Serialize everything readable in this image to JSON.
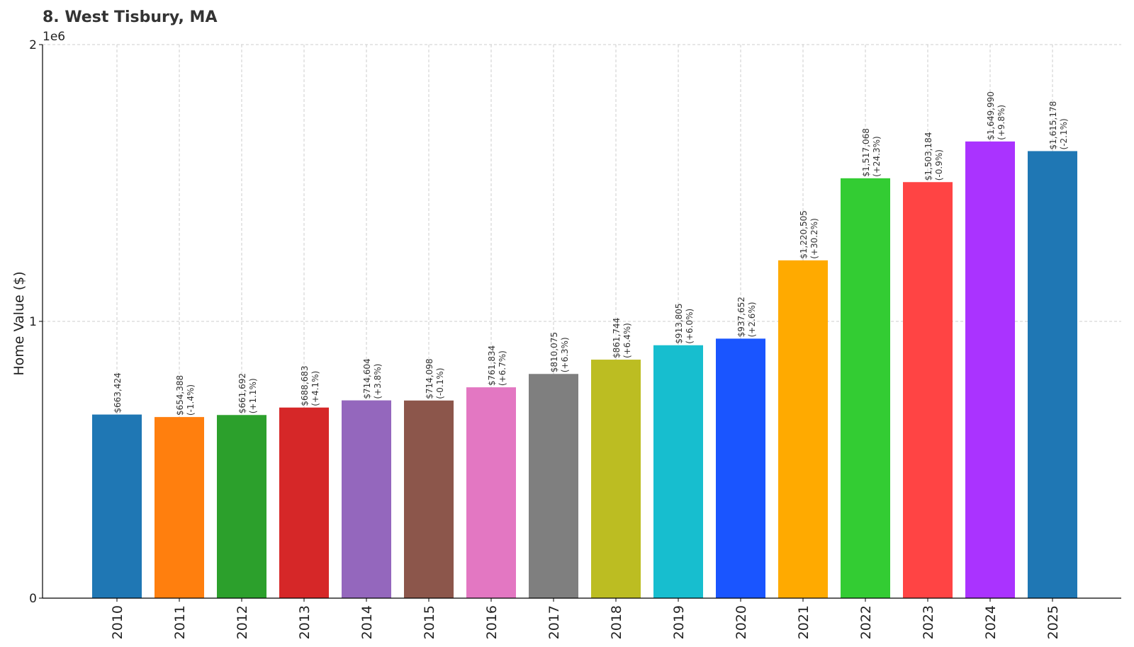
{
  "chart_data": {
    "type": "bar",
    "title": "8. West Tisbury, MA",
    "xlabel": "",
    "ylabel": "Home Value ($)",
    "y_offset_label": "1e6",
    "ylim": [
      0,
      2000000
    ],
    "y_ticks": [
      0,
      1000000,
      2000000
    ],
    "y_tick_labels": [
      "0",
      "1",
      "2"
    ],
    "grid": true,
    "categories": [
      "2010",
      "2011",
      "2012",
      "2013",
      "2014",
      "2015",
      "2016",
      "2017",
      "2018",
      "2019",
      "2020",
      "2021",
      "2022",
      "2023",
      "2024",
      "2025"
    ],
    "values": [
      663424,
      654388,
      661692,
      688683,
      714604,
      714098,
      761834,
      810075,
      861744,
      913805,
      937652,
      1220505,
      1517068,
      1503184,
      1649990,
      1615178
    ],
    "labels": [
      "$663,424",
      "$654,388",
      "$661,692",
      "$688,683",
      "$714,604",
      "$714,098",
      "$761,834",
      "$810,075",
      "$861,744",
      "$913,805",
      "$937,652",
      "$1,220,505",
      "$1,517,068",
      "$1,503,184",
      "$1,649,990",
      "$1,615,178"
    ],
    "changes": [
      "",
      "(-1.4%)",
      "(+1.1%)",
      "(+4.1%)",
      "(+3.8%)",
      "(-0.1%)",
      "(+6.7%)",
      "(+6.3%)",
      "(+6.4%)",
      "(+6.0%)",
      "(+2.6%)",
      "(+30.2%)",
      "(+24.3%)",
      "(-0.9%)",
      "(+9.8%)",
      "(-2.1%)"
    ],
    "colors": [
      "#1f77b4",
      "#ff7f0e",
      "#2ca02c",
      "#d62728",
      "#9467bd",
      "#8c564b",
      "#e377c2",
      "#7f7f7f",
      "#bcbd22",
      "#17becf",
      "#1a55ff",
      "#ffaa00",
      "#33cc33",
      "#ff4444",
      "#aa33ff",
      "#1f77b4"
    ]
  }
}
